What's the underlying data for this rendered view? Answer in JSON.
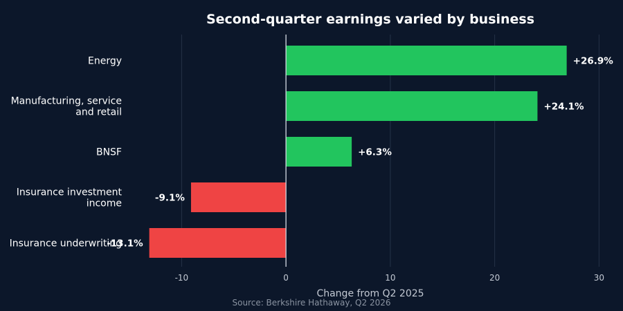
{
  "chart_data": {
    "type": "bar",
    "orientation": "horizontal",
    "title": "Second-quarter earnings varied by business",
    "xlabel": "Change from Q2 2025",
    "ylabel": "",
    "source": "Source: Berkshire Hathaway, Q2 2026",
    "categories": [
      "Energy",
      "Manufacturing, service and retail",
      "BNSF",
      "Insurance investment income",
      "Insurance underwriting"
    ],
    "category_lines": [
      [
        "Energy"
      ],
      [
        "Manufacturing, service",
        "and retail"
      ],
      [
        "BNSF"
      ],
      [
        "Insurance investment",
        "income"
      ],
      [
        "Insurance underwriting"
      ]
    ],
    "values": [
      26.9,
      24.1,
      6.3,
      -9.1,
      -13.1
    ],
    "value_labels": [
      "+26.9%",
      "+24.1%",
      "+6.3%",
      "-9.1%",
      "-13.1%"
    ],
    "xlim": [
      -15,
      31.5
    ],
    "xticks": [
      -10,
      0,
      10,
      20,
      30
    ],
    "xtick_labels": [
      "-10",
      "0",
      "10",
      "20",
      "30"
    ],
    "grid": true,
    "colors": {
      "positive": "#22c55e",
      "negative": "#ef4444",
      "background": "#0c172a",
      "grid": "#253247",
      "zero_line": "#d8dde5"
    }
  }
}
